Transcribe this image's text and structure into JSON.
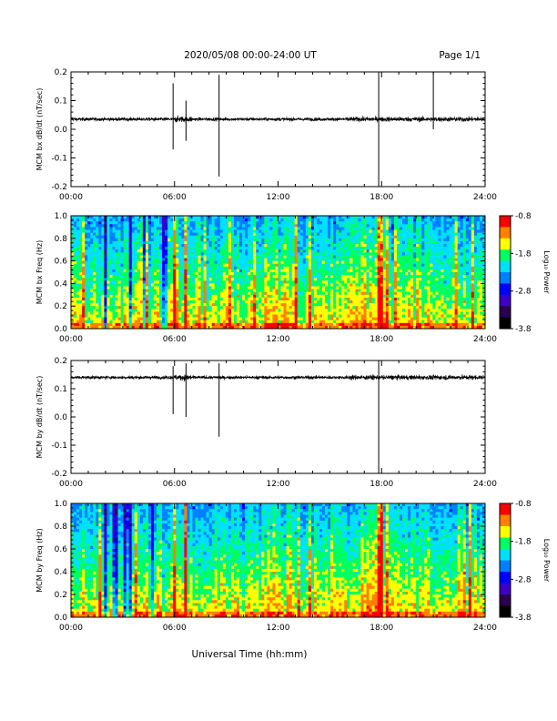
{
  "header": {
    "title": "2020/05/08  00:00-24:00 UT",
    "page": "Page 1/1"
  },
  "x_axis_title": "Universal Time (hh:mm)",
  "chart_data": [
    {
      "type": "line",
      "ylabel": "MCM bx dB/dt (nT/sec)",
      "xlim": [
        "00:00",
        "24:00"
      ],
      "ylim": [
        -0.2,
        0.2
      ],
      "x_ticks": [
        "00:00",
        "06:00",
        "12:00",
        "18:00",
        "24:00"
      ],
      "y_ticks": [
        "0.2",
        "0.1",
        "0.0",
        "-0.1",
        "-0.2"
      ],
      "baseline": 0.035,
      "spikes": [
        {
          "x": "05:55",
          "high": 0.16,
          "low": -0.07
        },
        {
          "x": "06:40",
          "high": 0.1,
          "low": -0.04
        },
        {
          "x": "08:35",
          "high": 0.19,
          "low": -0.165
        },
        {
          "x": "17:50",
          "high": 0.2,
          "low": -0.2
        },
        {
          "x": "21:00",
          "high": 0.2,
          "low": 0.0
        }
      ],
      "grid": false,
      "color": "#000000"
    },
    {
      "type": "heatmap",
      "ylabel": "MCM bx Freq (Hz)",
      "colorbar_label": "Log₁₀ Power",
      "xlim": [
        "00:00",
        "24:00"
      ],
      "ylim": [
        0.0,
        1.0
      ],
      "x_ticks": [
        "00:00",
        "06:00",
        "12:00",
        "18:00",
        "24:00"
      ],
      "y_ticks": [
        "1.0",
        "0.8",
        "0.6",
        "0.4",
        "0.2",
        "0.0"
      ],
      "colorbar_range": [
        -3.8,
        -0.8
      ],
      "colorbar_ticks": [
        "-0.8",
        "-1.8",
        "-2.8",
        "-3.8"
      ],
      "colormap": [
        "#000000",
        "#2a0050",
        "#3c00c8",
        "#0000ff",
        "#0080ff",
        "#00e0ff",
        "#00ff60",
        "#ffff00",
        "#ff8000",
        "#ff0000"
      ]
    },
    {
      "type": "line",
      "ylabel": "MCM by dB/dt (nT/sec)",
      "xlim": [
        "00:00",
        "24:00"
      ],
      "ylim": [
        -0.2,
        0.2
      ],
      "x_ticks": [
        "00:00",
        "06:00",
        "12:00",
        "18:00",
        "24:00"
      ],
      "y_ticks": [
        "0.2",
        "0.1",
        "0.0",
        "-0.1",
        "-0.2"
      ],
      "baseline": 0.14,
      "spikes": [
        {
          "x": "05:55",
          "high": 0.18,
          "low": 0.01
        },
        {
          "x": "06:40",
          "high": 0.19,
          "low": 0.0
        },
        {
          "x": "08:35",
          "high": 0.19,
          "low": -0.07
        },
        {
          "x": "17:50",
          "high": 0.2,
          "low": -0.2
        }
      ],
      "grid": false,
      "color": "#000000"
    },
    {
      "type": "heatmap",
      "ylabel": "MCM by Freq (Hz)",
      "colorbar_label": "Log₁₀ Power",
      "xlim": [
        "00:00",
        "24:00"
      ],
      "ylim": [
        0.0,
        1.0
      ],
      "x_ticks": [
        "00:00",
        "06:00",
        "12:00",
        "18:00",
        "24:00"
      ],
      "y_ticks": [
        "1.0",
        "0.8",
        "0.6",
        "0.4",
        "0.2",
        "0.0"
      ],
      "colorbar_range": [
        -3.8,
        -0.8
      ],
      "colorbar_ticks": [
        "-0.8",
        "-1.8",
        "-2.8",
        "-3.8"
      ],
      "colormap": [
        "#000000",
        "#2a0050",
        "#3c00c8",
        "#0000ff",
        "#0080ff",
        "#00e0ff",
        "#00ff60",
        "#ffff00",
        "#ff8000",
        "#ff0000"
      ]
    }
  ]
}
